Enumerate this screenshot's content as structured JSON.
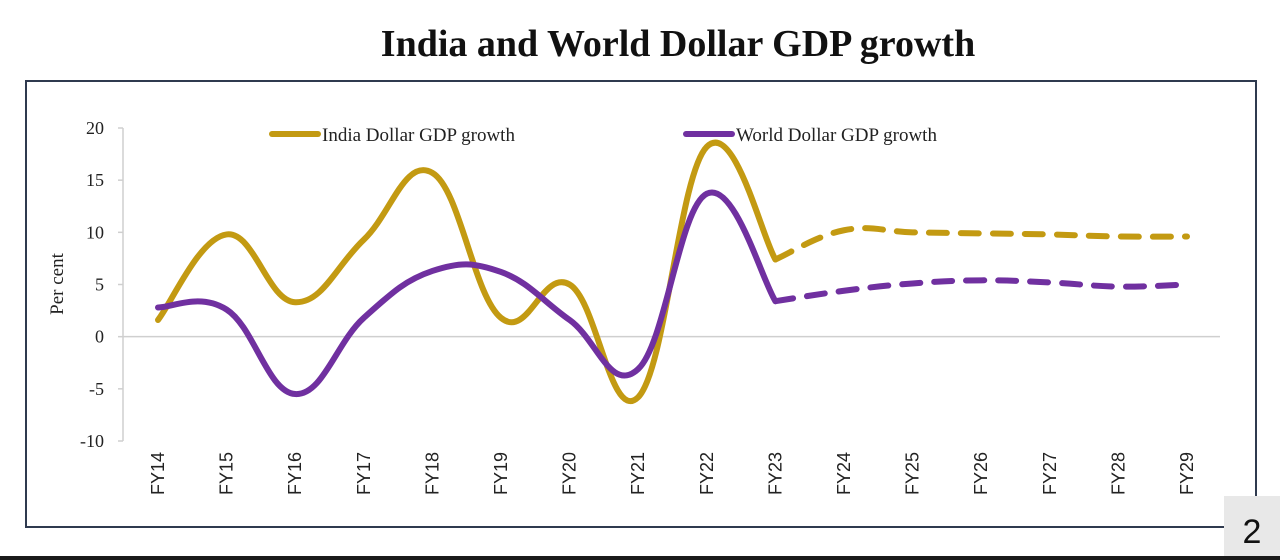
{
  "page": {
    "page_number": "2"
  },
  "chart_data": {
    "type": "line",
    "title": "India and World Dollar GDP growth",
    "xlabel": "",
    "ylabel": "Per cent",
    "ylim": [
      -10,
      20
    ],
    "yticks": [
      20,
      15,
      10,
      5,
      0,
      -5,
      -10
    ],
    "categories": [
      "FY14",
      "FY15",
      "FY16",
      "FY17",
      "FY18",
      "FY19",
      "FY20",
      "FY21",
      "FY22",
      "FY23",
      "FY24",
      "FY25",
      "FY26",
      "FY27",
      "FY28",
      "FY29"
    ],
    "projection_start": "FY23",
    "legend_position": "top",
    "grid": false,
    "series": [
      {
        "name": "India Dollar GDP growth",
        "color": "#c39a12",
        "values": [
          1.6,
          9.8,
          3.3,
          9.3,
          15.7,
          1.8,
          5.0,
          -5.8,
          18.2,
          7.4,
          10.2,
          10.0,
          9.9,
          9.8,
          9.6,
          9.6
        ]
      },
      {
        "name": "World Dollar GDP growth",
        "color": "#7030a0",
        "values": [
          2.8,
          2.6,
          -5.5,
          1.8,
          6.3,
          6.2,
          1.6,
          -3.1,
          13.7,
          3.4,
          4.4,
          5.1,
          5.4,
          5.2,
          4.8,
          5.0
        ]
      }
    ]
  }
}
